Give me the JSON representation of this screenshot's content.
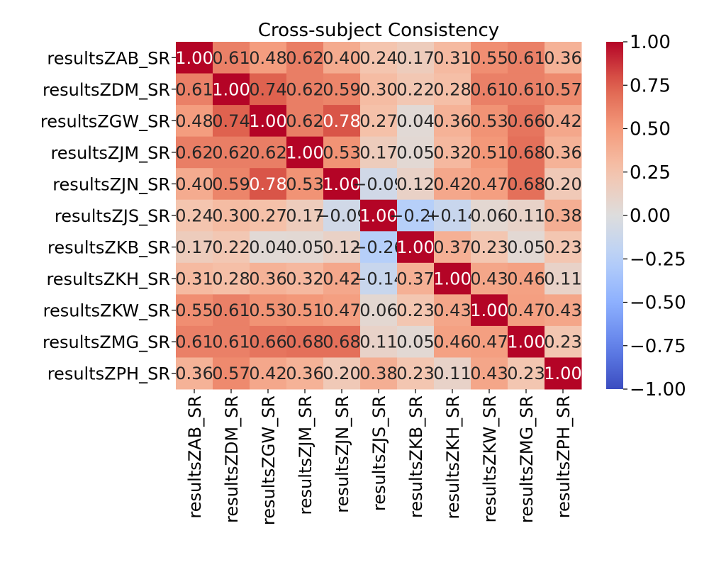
{
  "chart_data": {
    "type": "heatmap",
    "title": "Cross-subject Consistency",
    "xlabel": "",
    "ylabel": "",
    "labels": [
      "resultsZAB_SR",
      "resultsZDM_SR",
      "resultsZGW_SR",
      "resultsZJM_SR",
      "resultsZJN_SR",
      "resultsZJS_SR",
      "resultsZKB_SR",
      "resultsZKH_SR",
      "resultsZKW_SR",
      "resultsZMG_SR",
      "resultsZPH_SR"
    ],
    "matrix": [
      [
        1.0,
        0.61,
        0.48,
        0.62,
        0.4,
        0.24,
        0.17,
        0.31,
        0.55,
        0.61,
        0.36
      ],
      [
        0.61,
        1.0,
        0.74,
        0.62,
        0.59,
        0.3,
        0.22,
        0.28,
        0.61,
        0.61,
        0.57
      ],
      [
        0.48,
        0.74,
        1.0,
        0.62,
        0.78,
        0.27,
        0.04,
        0.36,
        0.53,
        0.66,
        0.42
      ],
      [
        0.62,
        0.62,
        0.62,
        1.0,
        0.53,
        0.17,
        0.05,
        0.32,
        0.51,
        0.68,
        0.36
      ],
      [
        0.4,
        0.59,
        0.78,
        0.53,
        1.0,
        -0.09,
        0.12,
        0.42,
        0.47,
        0.68,
        0.2
      ],
      [
        0.24,
        0.3,
        0.27,
        0.17,
        -0.09,
        1.0,
        -0.26,
        -0.14,
        0.06,
        0.11,
        0.38
      ],
      [
        0.17,
        0.22,
        0.04,
        0.05,
        0.12,
        -0.26,
        1.0,
        0.37,
        0.23,
        0.05,
        0.23
      ],
      [
        0.31,
        0.28,
        0.36,
        0.32,
        0.42,
        -0.14,
        0.37,
        1.0,
        0.43,
        0.46,
        0.11
      ],
      [
        0.55,
        0.61,
        0.53,
        0.51,
        0.47,
        0.06,
        0.23,
        0.43,
        1.0,
        0.47,
        0.43
      ],
      [
        0.61,
        0.61,
        0.66,
        0.68,
        0.68,
        0.11,
        0.05,
        0.46,
        0.47,
        1.0,
        0.23
      ],
      [
        0.36,
        0.57,
        0.42,
        0.36,
        0.2,
        0.38,
        0.23,
        0.11,
        0.43,
        0.23,
        1.0
      ]
    ],
    "value_format": "2 decimals",
    "colormap": "coolwarm",
    "vmin": -1.0,
    "vmax": 1.0,
    "colorbar": {
      "ticks": [
        1.0,
        0.75,
        0.5,
        0.25,
        0.0,
        -0.25,
        -0.5,
        -0.75,
        -1.0
      ],
      "tick_labels": [
        "1.00",
        "0.75",
        "0.50",
        "0.25",
        "0.00",
        "−0.25",
        "−0.50",
        "−0.75",
        "−1.00"
      ]
    },
    "grid": false,
    "annotate": true
  }
}
